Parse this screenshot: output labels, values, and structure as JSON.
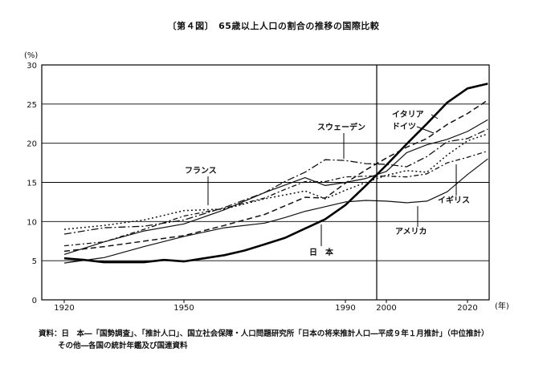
{
  "figure": {
    "title": "〔第４図〕　65歳以上人口の割合の推移の国際比較",
    "y_unit": "(%)",
    "x_unit": "(年)"
  },
  "source": {
    "line1": "資料：日　本―「国勢調査」、「推計人口」、国立社会保障・人口問題研究所「日本の将来推計人口―平成９年１月推計」（中位推計）",
    "line2": "その他―各国の統計年鑑及び国連資料"
  },
  "chart_data": {
    "type": "line",
    "title": "65歳以上人口の割合の推移の国際比較",
    "xlabel": "(年)",
    "ylabel": "(%)",
    "xlim": [
      1920,
      2025
    ],
    "ylim": [
      0,
      30
    ],
    "x_ticks": [
      1920,
      1950,
      1990,
      2000,
      2020
    ],
    "y_ticks": [
      0,
      5,
      10,
      15,
      20,
      25,
      30
    ],
    "grid": "horizontal",
    "annotations": [
      {
        "text": "イタリア",
        "series": "イタリア"
      },
      {
        "text": "ドイツ",
        "series": "ドイツ"
      },
      {
        "text": "スウェーデン",
        "series": "スウェーデン"
      },
      {
        "text": "フランス",
        "series": "フランス"
      },
      {
        "text": "イギリス",
        "series": "イギリス"
      },
      {
        "text": "アメリカ",
        "series": "アメリカ"
      },
      {
        "text": "日　本",
        "series": "日本"
      }
    ],
    "series": [
      {
        "name": "日本",
        "color": "#000000",
        "dash": "",
        "width": 2.6,
        "x": [
          1920,
          1925,
          1930,
          1935,
          1940,
          1945,
          1950,
          1955,
          1960,
          1965,
          1970,
          1975,
          1980,
          1985,
          1990,
          1995,
          2000,
          2005,
          2010,
          2015,
          2020,
          2025
        ],
        "y": [
          5.3,
          5.1,
          4.8,
          4.8,
          4.8,
          5.1,
          4.9,
          5.3,
          5.7,
          6.3,
          7.1,
          7.9,
          9.1,
          10.3,
          12.1,
          14.6,
          17.2,
          19.9,
          22.5,
          25.2,
          27.0,
          27.6
        ]
      },
      {
        "name": "イタリア",
        "color": "#111111",
        "dash": "7,4",
        "width": 1.5,
        "x": [
          1920,
          1930,
          1940,
          1950,
          1960,
          1970,
          1980,
          1985,
          1990,
          1995,
          2000,
          2005,
          2010,
          2015,
          2020,
          2025
        ],
        "y": [
          6.2,
          6.8,
          7.5,
          8.2,
          9.5,
          10.9,
          13.1,
          13.0,
          14.9,
          16.6,
          18.1,
          19.5,
          20.6,
          22.4,
          23.8,
          25.5
        ]
      },
      {
        "name": "ドイツ",
        "color": "#111111",
        "dash": "",
        "width": 1.2,
        "x": [
          1920,
          1930,
          1940,
          1950,
          1960,
          1970,
          1980,
          1985,
          1990,
          1995,
          2000,
          2005,
          2010,
          2015,
          2020,
          2025
        ],
        "y": [
          5.8,
          7.4,
          8.8,
          9.7,
          11.5,
          13.7,
          15.6,
          14.6,
          15.0,
          15.5,
          16.4,
          18.8,
          19.8,
          20.5,
          21.5,
          23.0
        ]
      },
      {
        "name": "スウェーデン",
        "color": "#111111",
        "dash": "9,3,2,3",
        "width": 1.3,
        "x": [
          1920,
          1930,
          1940,
          1950,
          1960,
          1970,
          1975,
          1980,
          1985,
          1990,
          1995,
          2000,
          2005,
          2010,
          2015,
          2020,
          2025
        ],
        "y": [
          8.4,
          9.2,
          9.4,
          10.2,
          11.8,
          13.7,
          15.1,
          16.3,
          17.9,
          17.8,
          17.4,
          17.3,
          17.0,
          18.3,
          20.2,
          20.6,
          21.8
        ]
      },
      {
        "name": "フランス",
        "color": "#111111",
        "dash": "2,3",
        "width": 1.5,
        "x": [
          1920,
          1930,
          1940,
          1950,
          1960,
          1970,
          1975,
          1980,
          1985,
          1990,
          1995,
          2000,
          2005,
          2010,
          2015,
          2020,
          2025
        ],
        "y": [
          9.0,
          9.5,
          10.2,
          11.4,
          11.6,
          12.9,
          13.4,
          13.9,
          12.9,
          14.0,
          15.0,
          15.9,
          16.5,
          16.3,
          18.5,
          20.3,
          21.2
        ]
      },
      {
        "name": "イギリス",
        "color": "#111111",
        "dash": "6,3,2,3",
        "width": 1.3,
        "x": [
          1920,
          1930,
          1940,
          1950,
          1960,
          1970,
          1975,
          1980,
          1985,
          1990,
          1995,
          2000,
          2005,
          2010,
          2015,
          2020,
          2025
        ],
        "y": [
          6.9,
          7.4,
          9.0,
          10.7,
          11.7,
          13.0,
          14.1,
          15.1,
          15.1,
          15.7,
          15.8,
          15.8,
          15.7,
          16.1,
          17.5,
          18.2,
          19.0
        ]
      },
      {
        "name": "アメリカ",
        "color": "#111111",
        "dash": "",
        "width": 1.2,
        "x": [
          1920,
          1930,
          1940,
          1950,
          1960,
          1970,
          1975,
          1980,
          1985,
          1990,
          1995,
          2000,
          2005,
          2010,
          2015,
          2020,
          2025
        ],
        "y": [
          4.7,
          5.4,
          6.8,
          8.1,
          9.2,
          9.8,
          10.5,
          11.3,
          11.9,
          12.5,
          12.7,
          12.6,
          12.4,
          12.6,
          13.8,
          16.0,
          18.0
        ]
      }
    ]
  }
}
